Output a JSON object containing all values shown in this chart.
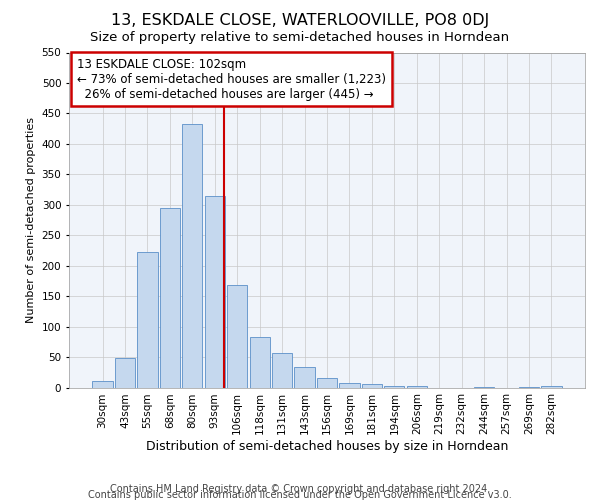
{
  "title": "13, ESKDALE CLOSE, WATERLOOVILLE, PO8 0DJ",
  "subtitle": "Size of property relative to semi-detached houses in Horndean",
  "xlabel": "Distribution of semi-detached houses by size in Horndean",
  "ylabel": "Number of semi-detached properties",
  "bar_labels": [
    "30sqm",
    "43sqm",
    "55sqm",
    "68sqm",
    "80sqm",
    "93sqm",
    "106sqm",
    "118sqm",
    "131sqm",
    "143sqm",
    "156sqm",
    "169sqm",
    "181sqm",
    "194sqm",
    "206sqm",
    "219sqm",
    "232sqm",
    "244sqm",
    "257sqm",
    "269sqm",
    "282sqm"
  ],
  "bar_values": [
    10,
    48,
    222,
    295,
    432,
    315,
    168,
    83,
    57,
    34,
    16,
    7,
    5,
    3,
    2,
    0,
    0,
    1,
    0,
    1,
    2
  ],
  "bar_color": "#c5d8ee",
  "bar_edge_color": "#5b8fc9",
  "property_label": "13 ESKDALE CLOSE: 102sqm",
  "pct_smaller": 73,
  "pct_smaller_n": "1,223",
  "pct_larger": 26,
  "pct_larger_n": "445",
  "annotation_box_color": "#ffffff",
  "annotation_box_edge": "#cc0000",
  "vline_color": "#cc0000",
  "ylim": [
    0,
    550
  ],
  "yticks": [
    0,
    50,
    100,
    150,
    200,
    250,
    300,
    350,
    400,
    450,
    500,
    550
  ],
  "footer_line1": "Contains HM Land Registry data © Crown copyright and database right 2024.",
  "footer_line2": "Contains public sector information licensed under the Open Government Licence v3.0.",
  "title_fontsize": 11.5,
  "subtitle_fontsize": 9.5,
  "xlabel_fontsize": 9,
  "ylabel_fontsize": 8,
  "annotation_fontsize": 8.5,
  "footer_fontsize": 7,
  "tick_fontsize": 7.5,
  "vline_x_bar_index": 5.42
}
